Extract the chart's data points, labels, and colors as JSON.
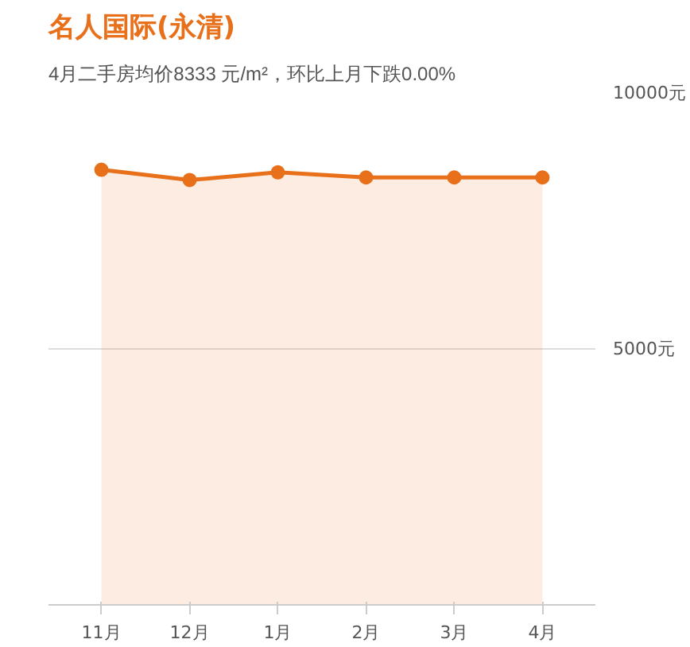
{
  "chart_data": {
    "type": "area",
    "title": "名人国际(永清)",
    "subtitle": "4月二手房均价8333 元/m²，环比上月下跌0.00%",
    "categories": [
      "11月",
      "12月",
      "1月",
      "2月",
      "3月",
      "4月"
    ],
    "series": [
      {
        "color": "#e8701a",
        "values": [
          8500,
          8300,
          8450,
          8350,
          8350,
          8350
        ]
      }
    ],
    "ylim": [
      0,
      10000
    ],
    "yticks": [
      {
        "value": 5000,
        "label": "5000元"
      },
      {
        "value": 10000,
        "label": "10000元"
      }
    ],
    "grid": "y",
    "marker": "circle",
    "line_style": "solid"
  }
}
